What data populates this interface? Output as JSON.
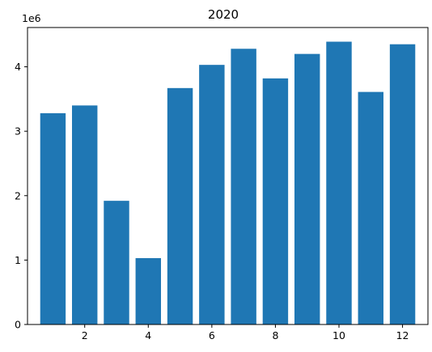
{
  "chart_data": {
    "type": "bar",
    "title": "2020",
    "xlabel": "",
    "ylabel": "",
    "y_offset_label": "1e6",
    "x": [
      1,
      2,
      3,
      4,
      5,
      6,
      7,
      8,
      9,
      10,
      11,
      12
    ],
    "values": [
      3.28,
      3.4,
      1.92,
      1.03,
      3.67,
      4.03,
      4.28,
      3.82,
      4.2,
      4.39,
      3.61,
      4.35
    ],
    "value_multiplier": 1000000,
    "xlim": [
      0.2,
      12.8
    ],
    "ylim": [
      0,
      4.61
    ],
    "xticks": [
      2,
      4,
      6,
      8,
      10,
      12
    ],
    "xtick_labels": [
      "2",
      "4",
      "6",
      "8",
      "10",
      "12"
    ],
    "yticks": [
      0,
      1,
      2,
      3,
      4
    ],
    "ytick_labels": [
      "0",
      "1",
      "2",
      "3",
      "4"
    ],
    "bar_color": "#1f77b4",
    "grid": false,
    "legend": "none"
  }
}
